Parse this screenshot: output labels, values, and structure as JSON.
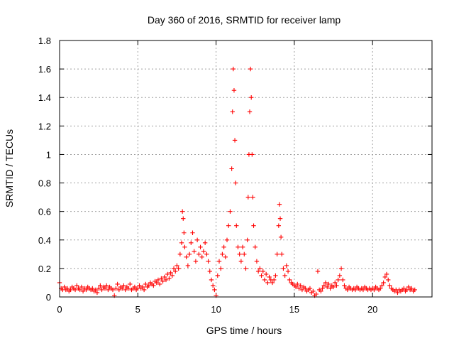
{
  "chart_data": {
    "type": "scatter",
    "title": "Day 360 of 2016, SRMTID for receiver lamp",
    "xlabel": "GPS time / hours",
    "ylabel": "SRMTID / TECUs",
    "xlim": [
      0,
      23.8
    ],
    "ylim": [
      0,
      1.8
    ],
    "xticks": [
      0,
      5,
      10,
      15,
      20
    ],
    "yticks": [
      0,
      0.2,
      0.4,
      0.6,
      0.8,
      1,
      1.2,
      1.4,
      1.6,
      1.8
    ],
    "xtick_labels": [
      "0",
      "5",
      "10",
      "15",
      "20"
    ],
    "ytick_labels": [
      "0",
      "0.2",
      "0.4",
      "0.6",
      "0.8",
      "1",
      "1.2",
      "1.4",
      "1.6",
      "1.8"
    ],
    "grid": true,
    "marker": "+",
    "color": "#ff0000",
    "series": [
      {
        "name": "SRMTID",
        "points": [
          [
            0.0,
            0.1
          ],
          [
            0.1,
            0.06
          ],
          [
            0.2,
            0.05
          ],
          [
            0.3,
            0.07
          ],
          [
            0.4,
            0.05
          ],
          [
            0.5,
            0.06
          ],
          [
            0.6,
            0.04
          ],
          [
            0.7,
            0.05
          ],
          [
            0.8,
            0.07
          ],
          [
            0.9,
            0.06
          ],
          [
            1.0,
            0.05
          ],
          [
            1.1,
            0.08
          ],
          [
            1.2,
            0.06
          ],
          [
            1.3,
            0.05
          ],
          [
            1.4,
            0.07
          ],
          [
            1.5,
            0.04
          ],
          [
            1.6,
            0.06
          ],
          [
            1.7,
            0.05
          ],
          [
            1.8,
            0.07
          ],
          [
            1.9,
            0.06
          ],
          [
            2.0,
            0.05
          ],
          [
            2.1,
            0.06
          ],
          [
            2.2,
            0.04
          ],
          [
            2.3,
            0.05
          ],
          [
            2.4,
            0.03
          ],
          [
            2.5,
            0.06
          ],
          [
            2.6,
            0.08
          ],
          [
            2.7,
            0.05
          ],
          [
            2.8,
            0.07
          ],
          [
            2.9,
            0.06
          ],
          [
            3.0,
            0.08
          ],
          [
            3.1,
            0.05
          ],
          [
            3.2,
            0.07
          ],
          [
            3.3,
            0.06
          ],
          [
            3.4,
            0.05
          ],
          [
            3.5,
            0.01
          ],
          [
            3.6,
            0.06
          ],
          [
            3.7,
            0.09
          ],
          [
            3.8,
            0.05
          ],
          [
            3.9,
            0.07
          ],
          [
            4.0,
            0.06
          ],
          [
            4.1,
            0.08
          ],
          [
            4.2,
            0.05
          ],
          [
            4.3,
            0.07
          ],
          [
            4.4,
            0.06
          ],
          [
            4.5,
            0.09
          ],
          [
            4.6,
            0.05
          ],
          [
            4.7,
            0.06
          ],
          [
            4.8,
            0.07
          ],
          [
            4.9,
            0.05
          ],
          [
            5.0,
            0.06
          ],
          [
            5.1,
            0.08
          ],
          [
            5.2,
            0.06
          ],
          [
            5.3,
            0.07
          ],
          [
            5.4,
            0.05
          ],
          [
            5.5,
            0.09
          ],
          [
            5.6,
            0.07
          ],
          [
            5.7,
            0.08
          ],
          [
            5.8,
            0.1
          ],
          [
            5.9,
            0.09
          ],
          [
            6.0,
            0.08
          ],
          [
            6.1,
            0.11
          ],
          [
            6.2,
            0.1
          ],
          [
            6.3,
            0.12
          ],
          [
            6.4,
            0.09
          ],
          [
            6.5,
            0.13
          ],
          [
            6.6,
            0.11
          ],
          [
            6.7,
            0.14
          ],
          [
            6.8,
            0.12
          ],
          [
            6.9,
            0.16
          ],
          [
            7.0,
            0.13
          ],
          [
            7.1,
            0.17
          ],
          [
            7.2,
            0.15
          ],
          [
            7.3,
            0.2
          ],
          [
            7.4,
            0.18
          ],
          [
            7.5,
            0.22
          ],
          [
            7.6,
            0.2
          ],
          [
            7.7,
            0.3
          ],
          [
            7.8,
            0.38
          ],
          [
            7.85,
            0.6
          ],
          [
            7.9,
            0.55
          ],
          [
            7.95,
            0.45
          ],
          [
            8.0,
            0.35
          ],
          [
            8.1,
            0.28
          ],
          [
            8.2,
            0.22
          ],
          [
            8.3,
            0.3
          ],
          [
            8.4,
            0.38
          ],
          [
            8.5,
            0.45
          ],
          [
            8.6,
            0.32
          ],
          [
            8.7,
            0.25
          ],
          [
            8.8,
            0.4
          ],
          [
            8.9,
            0.3
          ],
          [
            9.0,
            0.35
          ],
          [
            9.1,
            0.28
          ],
          [
            9.2,
            0.32
          ],
          [
            9.3,
            0.38
          ],
          [
            9.4,
            0.3
          ],
          [
            9.5,
            0.25
          ],
          [
            9.6,
            0.18
          ],
          [
            9.7,
            0.12
          ],
          [
            9.8,
            0.08
          ],
          [
            9.9,
            0.05
          ],
          [
            10.0,
            0.01
          ],
          [
            10.1,
            0.15
          ],
          [
            10.2,
            0.25
          ],
          [
            10.3,
            0.2
          ],
          [
            10.4,
            0.3
          ],
          [
            10.5,
            0.35
          ],
          [
            10.6,
            0.28
          ],
          [
            10.7,
            0.4
          ],
          [
            10.8,
            0.5
          ],
          [
            10.9,
            0.6
          ],
          [
            11.0,
            0.9
          ],
          [
            11.05,
            1.3
          ],
          [
            11.1,
            1.6
          ],
          [
            11.15,
            1.45
          ],
          [
            11.2,
            1.1
          ],
          [
            11.25,
            0.8
          ],
          [
            11.3,
            0.5
          ],
          [
            11.4,
            0.35
          ],
          [
            11.5,
            0.3
          ],
          [
            11.6,
            0.25
          ],
          [
            11.7,
            0.35
          ],
          [
            11.8,
            0.3
          ],
          [
            11.9,
            0.2
          ],
          [
            12.0,
            0.4
          ],
          [
            12.05,
            0.7
          ],
          [
            12.1,
            1.0
          ],
          [
            12.15,
            1.3
          ],
          [
            12.2,
            1.6
          ],
          [
            12.25,
            1.4
          ],
          [
            12.3,
            1.0
          ],
          [
            12.35,
            0.7
          ],
          [
            12.4,
            0.5
          ],
          [
            12.5,
            0.35
          ],
          [
            12.6,
            0.25
          ],
          [
            12.7,
            0.18
          ],
          [
            12.8,
            0.2
          ],
          [
            12.9,
            0.15
          ],
          [
            13.0,
            0.18
          ],
          [
            13.1,
            0.12
          ],
          [
            13.2,
            0.16
          ],
          [
            13.3,
            0.1
          ],
          [
            13.4,
            0.14
          ],
          [
            13.5,
            0.12
          ],
          [
            13.6,
            0.1
          ],
          [
            13.7,
            0.12
          ],
          [
            13.8,
            0.15
          ],
          [
            13.9,
            0.3
          ],
          [
            14.0,
            0.5
          ],
          [
            14.05,
            0.65
          ],
          [
            14.1,
            0.55
          ],
          [
            14.15,
            0.42
          ],
          [
            14.2,
            0.3
          ],
          [
            14.3,
            0.2
          ],
          [
            14.4,
            0.15
          ],
          [
            14.5,
            0.22
          ],
          [
            14.6,
            0.18
          ],
          [
            14.7,
            0.12
          ],
          [
            14.8,
            0.1
          ],
          [
            14.9,
            0.09
          ],
          [
            15.0,
            0.08
          ],
          [
            15.1,
            0.07
          ],
          [
            15.2,
            0.09
          ],
          [
            15.3,
            0.06
          ],
          [
            15.4,
            0.08
          ],
          [
            15.5,
            0.05
          ],
          [
            15.6,
            0.07
          ],
          [
            15.7,
            0.06
          ],
          [
            15.8,
            0.04
          ],
          [
            15.9,
            0.05
          ],
          [
            16.0,
            0.06
          ],
          [
            16.1,
            0.03
          ],
          [
            16.2,
            0.04
          ],
          [
            16.3,
            0.01
          ],
          [
            16.4,
            0.02
          ],
          [
            16.5,
            0.18
          ],
          [
            16.6,
            0.05
          ],
          [
            16.7,
            0.04
          ],
          [
            16.8,
            0.06
          ],
          [
            16.9,
            0.08
          ],
          [
            17.0,
            0.1
          ],
          [
            17.1,
            0.07
          ],
          [
            17.2,
            0.09
          ],
          [
            17.3,
            0.06
          ],
          [
            17.4,
            0.08
          ],
          [
            17.5,
            0.07
          ],
          [
            17.6,
            0.1
          ],
          [
            17.7,
            0.08
          ],
          [
            17.8,
            0.12
          ],
          [
            17.9,
            0.15
          ],
          [
            18.0,
            0.2
          ],
          [
            18.1,
            0.12
          ],
          [
            18.2,
            0.08
          ],
          [
            18.3,
            0.06
          ],
          [
            18.4,
            0.05
          ],
          [
            18.5,
            0.07
          ],
          [
            18.6,
            0.06
          ],
          [
            18.7,
            0.05
          ],
          [
            18.8,
            0.06
          ],
          [
            18.9,
            0.05
          ],
          [
            19.0,
            0.07
          ],
          [
            19.1,
            0.06
          ],
          [
            19.2,
            0.05
          ],
          [
            19.3,
            0.06
          ],
          [
            19.4,
            0.05
          ],
          [
            19.5,
            0.07
          ],
          [
            19.6,
            0.06
          ],
          [
            19.7,
            0.05
          ],
          [
            19.8,
            0.06
          ],
          [
            19.9,
            0.05
          ],
          [
            20.0,
            0.06
          ],
          [
            20.1,
            0.05
          ],
          [
            20.2,
            0.07
          ],
          [
            20.3,
            0.06
          ],
          [
            20.4,
            0.05
          ],
          [
            20.5,
            0.06
          ],
          [
            20.6,
            0.08
          ],
          [
            20.7,
            0.1
          ],
          [
            20.8,
            0.14
          ],
          [
            20.9,
            0.16
          ],
          [
            21.0,
            0.12
          ],
          [
            21.1,
            0.08
          ],
          [
            21.2,
            0.06
          ],
          [
            21.3,
            0.05
          ],
          [
            21.4,
            0.04
          ],
          [
            21.5,
            0.05
          ],
          [
            21.6,
            0.03
          ],
          [
            21.7,
            0.05
          ],
          [
            21.8,
            0.04
          ],
          [
            21.9,
            0.05
          ],
          [
            22.0,
            0.06
          ],
          [
            22.1,
            0.04
          ],
          [
            22.2,
            0.05
          ],
          [
            22.3,
            0.07
          ],
          [
            22.4,
            0.05
          ],
          [
            22.5,
            0.06
          ],
          [
            22.6,
            0.04
          ],
          [
            22.7,
            0.05
          ]
        ]
      }
    ]
  }
}
